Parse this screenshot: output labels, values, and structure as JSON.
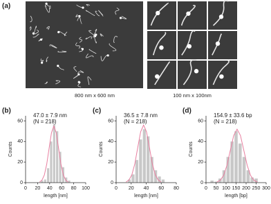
{
  "images": {
    "panel": "(a)",
    "captions": [
      "800 nm x 600 nm",
      "100 nm x 100nm"
    ]
  },
  "chart_data": [
    {
      "type": "histogram",
      "panel": "(b)",
      "annotations": [
        "47.0 ± 7.9 nm",
        "(N = 218)"
      ],
      "xlabel": "length [nm]",
      "ylabel": "Counts",
      "color": "#c8c8c8",
      "bins": [
        25,
        30,
        35,
        40,
        45,
        50,
        55,
        60,
        65,
        70,
        75
      ],
      "values": [
        2,
        3,
        14,
        40,
        57,
        50,
        30,
        15,
        5,
        2
      ],
      "xlim": [
        0,
        100
      ],
      "ylim": [
        0,
        65
      ],
      "xticks": [
        0,
        20,
        40,
        60,
        80,
        100
      ],
      "yticks": [
        0,
        20,
        40,
        60
      ],
      "fit": {
        "color": "#e87fa0",
        "x": [
          23.3,
          27.25,
          31.2,
          35.15,
          39.1,
          43.05,
          47,
          50.95,
          54.9,
          58.85,
          62.8,
          66.75,
          70.7
        ],
        "values": [
          0.6,
          2.4,
          7.4,
          17.9,
          33.4,
          48.5,
          55,
          48.5,
          33.4,
          17.9,
          7.4,
          2.4,
          0.6
        ]
      }
    },
    {
      "type": "histogram",
      "panel": "(c)",
      "annotations": [
        "36.5 ± 7.8 nm",
        "(N = 218)"
      ],
      "xlabel": "length [nm]",
      "ylabel": "Counts",
      "color": "#c8c8c8",
      "bins": [
        15,
        20,
        25,
        30,
        35,
        40,
        45,
        50,
        55,
        60,
        65
      ],
      "values": [
        3,
        8,
        22,
        42,
        52,
        45,
        25,
        12,
        6,
        3
      ],
      "xlim": [
        0,
        80
      ],
      "ylim": [
        0,
        65
      ],
      "xticks": [
        0,
        20,
        40,
        60,
        80
      ],
      "yticks": [
        0,
        20,
        40,
        60
      ],
      "fit": {
        "color": "#e87fa0",
        "x": [
          13.1,
          17,
          20.9,
          24.8,
          28.7,
          32.6,
          36.5,
          40.4,
          44.3,
          48.2,
          52.1,
          56,
          59.9
        ],
        "values": [
          0.6,
          2.5,
          7.6,
          18.2,
          34,
          49.4,
          56,
          49.4,
          34,
          18.2,
          7.6,
          2.5,
          0.6
        ]
      }
    },
    {
      "type": "histogram",
      "panel": "(d)",
      "annotations": [
        "154.9 ± 33.6 bp",
        "(N = 218)"
      ],
      "xlabel": "length [bp]",
      "ylabel": "Counts",
      "color": "#c8c8c8",
      "bins": [
        20,
        40,
        60,
        80,
        100,
        120,
        140,
        160,
        180,
        200,
        220,
        240,
        260
      ],
      "values": [
        2,
        1,
        4,
        12,
        25,
        40,
        50,
        38,
        25,
        12,
        5,
        4
      ],
      "xlim": [
        0,
        300
      ],
      "ylim": [
        0,
        65
      ],
      "xticks": [
        0,
        50,
        100,
        150,
        200,
        250,
        300
      ],
      "yticks": [
        0,
        20,
        40,
        60
      ],
      "fit": {
        "color": "#e87fa0",
        "x": [
          54.1,
          71,
          87.7,
          104.5,
          121.3,
          138.1,
          154.9,
          171.7,
          188.5,
          205.3,
          222.1,
          238.9,
          255.7
        ],
        "values": [
          0.6,
          2.3,
          7,
          16.9,
          31.5,
          45.9,
          52,
          45.9,
          31.5,
          16.9,
          7,
          2.3,
          0.6
        ]
      }
    }
  ]
}
